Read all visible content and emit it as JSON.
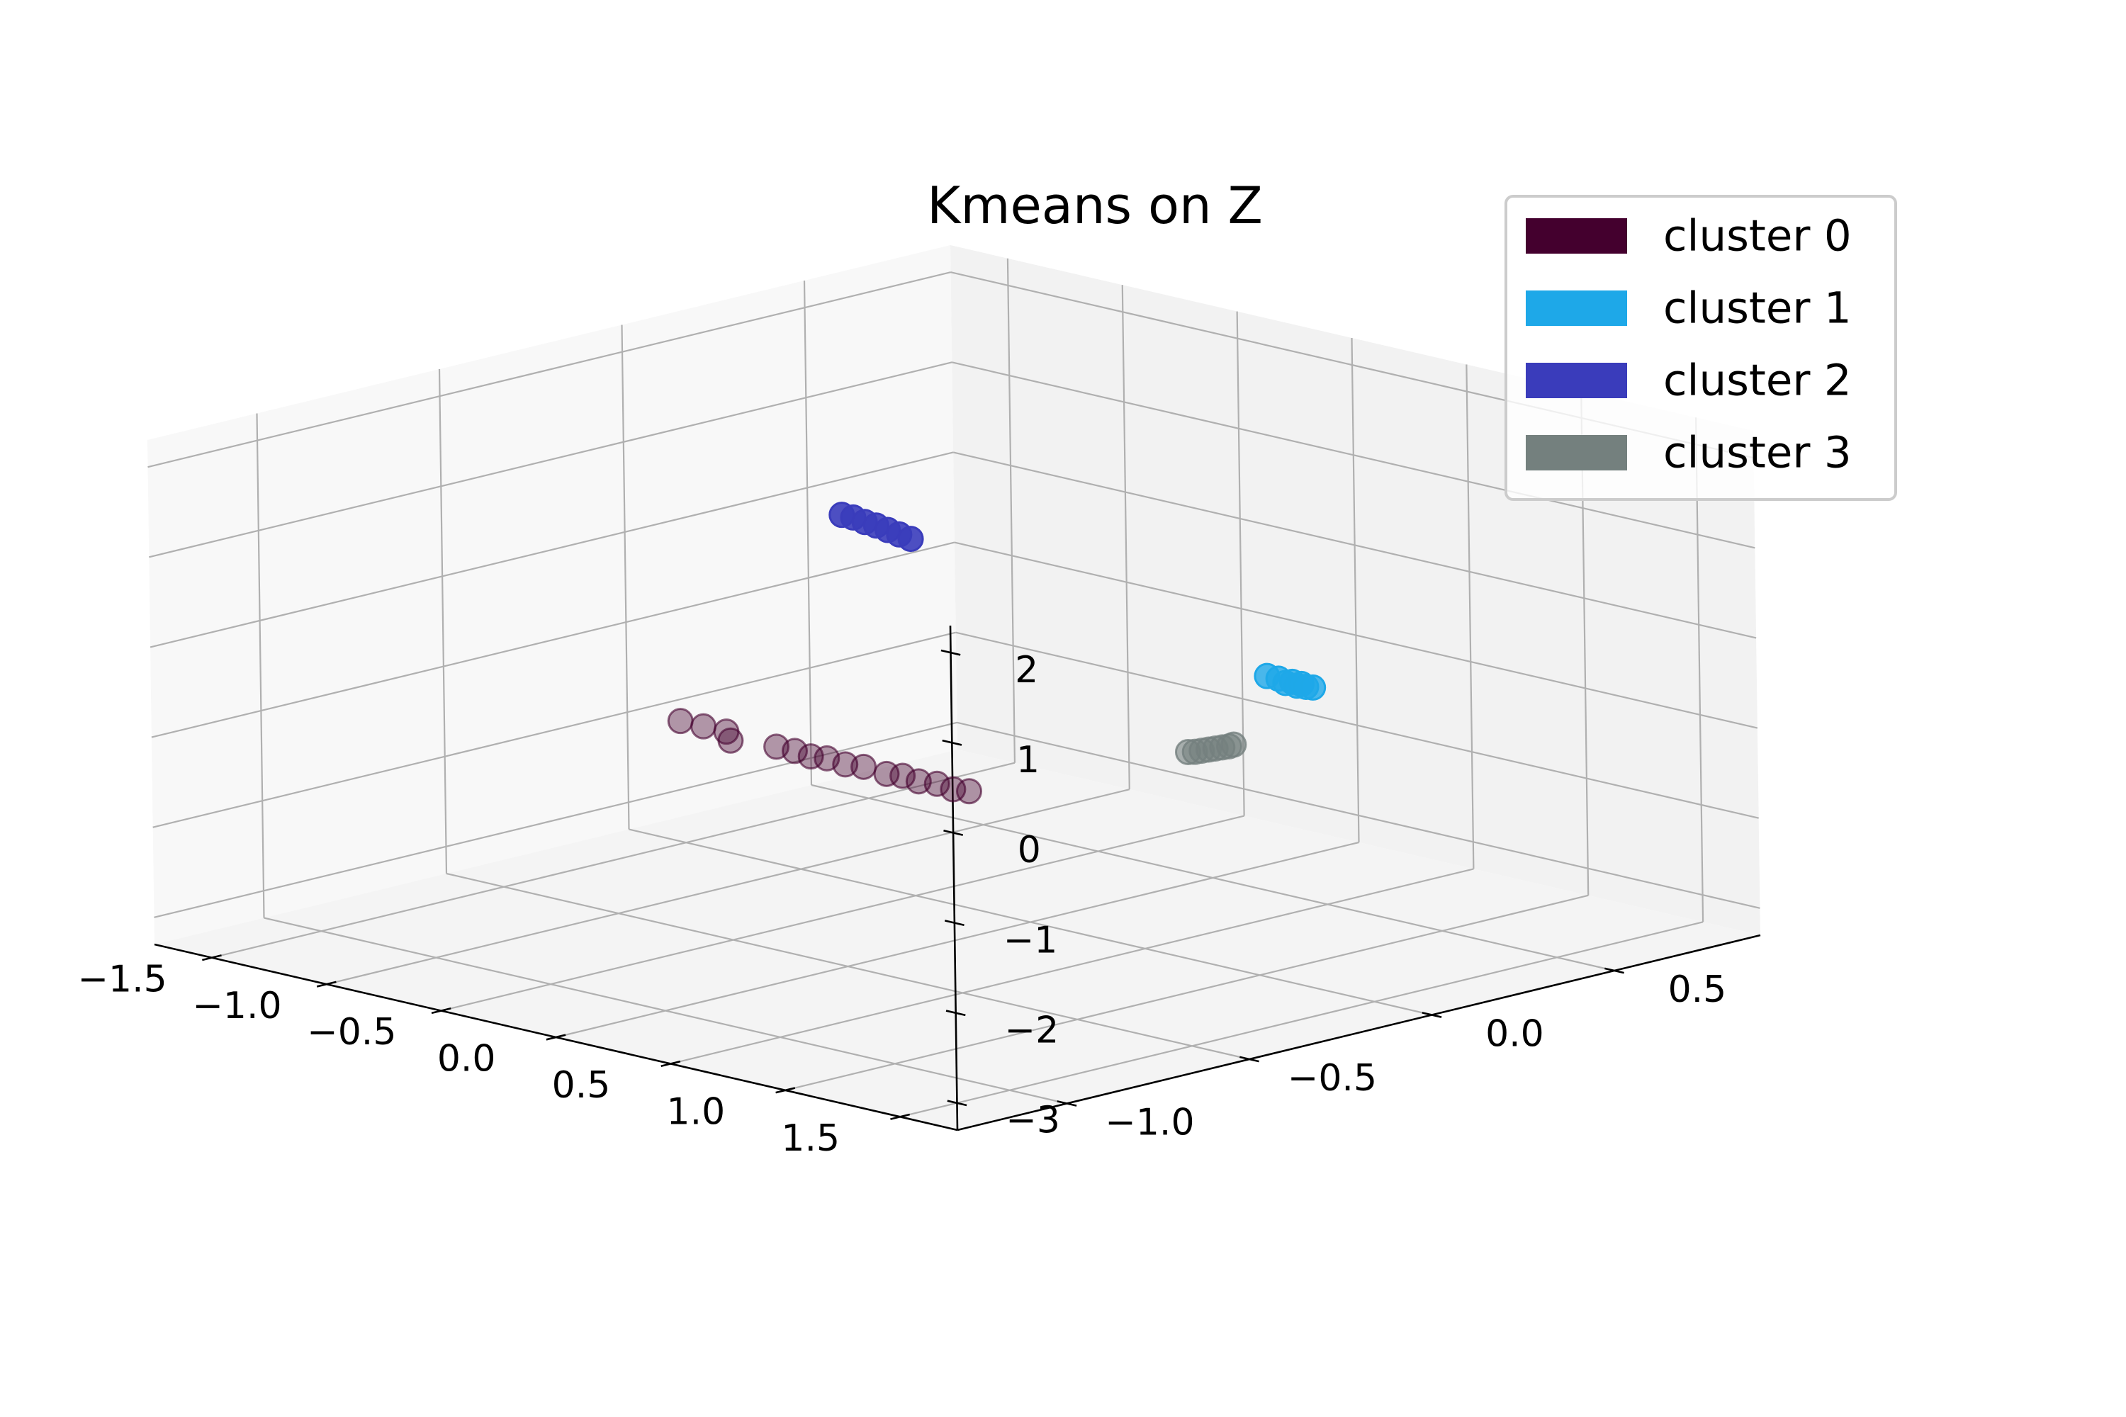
{
  "chart_data": {
    "type": "scatter",
    "projection": "3d",
    "title": "Kmeans on Z",
    "xlabel": "",
    "ylabel": "",
    "zlabel": "",
    "grid": true,
    "legend": {
      "position": "top-right"
    },
    "axes": {
      "x": {
        "lim": [
          -1.75,
          1.75
        ],
        "ticks": [
          -1.5,
          -1.0,
          -0.5,
          0.0,
          0.5,
          1.0,
          1.5
        ],
        "tick_labels": [
          "−1.5",
          "−1.0",
          "−0.5",
          "0.0",
          "0.5",
          "1.0",
          "1.5"
        ]
      },
      "y": {
        "lim": [
          -1.3,
          0.9
        ],
        "ticks": [
          -1.0,
          -0.5,
          0.0,
          0.5
        ],
        "tick_labels": [
          "−1.0",
          "−0.5",
          "0.0",
          "0.5"
        ]
      },
      "z": {
        "lim": [
          -3.3,
          2.3
        ],
        "ticks": [
          -3,
          -2,
          -1,
          0,
          1,
          2
        ],
        "tick_labels": [
          "−3",
          "−2",
          "−1",
          "0",
          "1",
          "2"
        ]
      }
    },
    "series": [
      {
        "name": "cluster 0",
        "color": "#44002e",
        "alpha": 0.4,
        "points": [
          [
            -1.55,
            0.02,
            -2.0
          ],
          [
            -1.45,
            0.02,
            -2.0
          ],
          [
            -1.35,
            0.02,
            -2.0
          ],
          [
            -1.3,
            0.0,
            -2.05
          ],
          [
            -1.1,
            0.0,
            -2.0
          ],
          [
            -1.02,
            0.0,
            -2.0
          ],
          [
            -0.95,
            0.0,
            -2.02
          ],
          [
            -0.88,
            0.0,
            -2.0
          ],
          [
            -0.8,
            0.0,
            -2.02
          ],
          [
            -0.72,
            0.0,
            -2.0
          ],
          [
            -0.62,
            0.0,
            -2.02
          ],
          [
            -0.55,
            0.0,
            -2.0
          ],
          [
            -0.48,
            0.0,
            -2.02
          ],
          [
            -0.4,
            0.0,
            -2.0
          ],
          [
            -0.33,
            0.0,
            -2.02
          ],
          [
            -0.26,
            0.0,
            -2.0
          ]
        ]
      },
      {
        "name": "cluster 1",
        "color": "#1ea8e8",
        "alpha": 0.8,
        "points": [
          [
            1.05,
            0.0,
            0.05
          ],
          [
            1.1,
            0.0,
            0.05
          ],
          [
            1.13,
            0.0,
            0.02
          ],
          [
            1.16,
            0.0,
            0.05
          ],
          [
            1.18,
            0.0,
            0.02
          ],
          [
            1.2,
            0.0,
            0.05
          ],
          [
            1.22,
            0.0,
            0.03
          ],
          [
            1.25,
            0.0,
            0.04
          ]
        ]
      },
      {
        "name": "cluster 2",
        "color": "#3a3cbb",
        "alpha": 0.9,
        "points": [
          [
            -0.8,
            0.0,
            0.75
          ],
          [
            -0.75,
            0.0,
            0.75
          ],
          [
            -0.7,
            0.0,
            0.73
          ],
          [
            -0.65,
            0.0,
            0.72
          ],
          [
            -0.6,
            0.0,
            0.7
          ],
          [
            -0.55,
            0.0,
            0.68
          ],
          [
            -0.5,
            0.0,
            0.66
          ]
        ]
      },
      {
        "name": "cluster 3",
        "color": "#74807e",
        "alpha": 0.6,
        "points": [
          [
            0.7,
            0.0,
            -1.0
          ],
          [
            0.73,
            0.0,
            -0.98
          ],
          [
            0.76,
            0.0,
            -0.95
          ],
          [
            0.79,
            0.0,
            -0.92
          ],
          [
            0.82,
            0.0,
            -0.89
          ],
          [
            0.85,
            0.0,
            -0.86
          ],
          [
            0.88,
            0.0,
            -0.83
          ],
          [
            0.9,
            0.0,
            -0.8
          ]
        ]
      }
    ]
  }
}
